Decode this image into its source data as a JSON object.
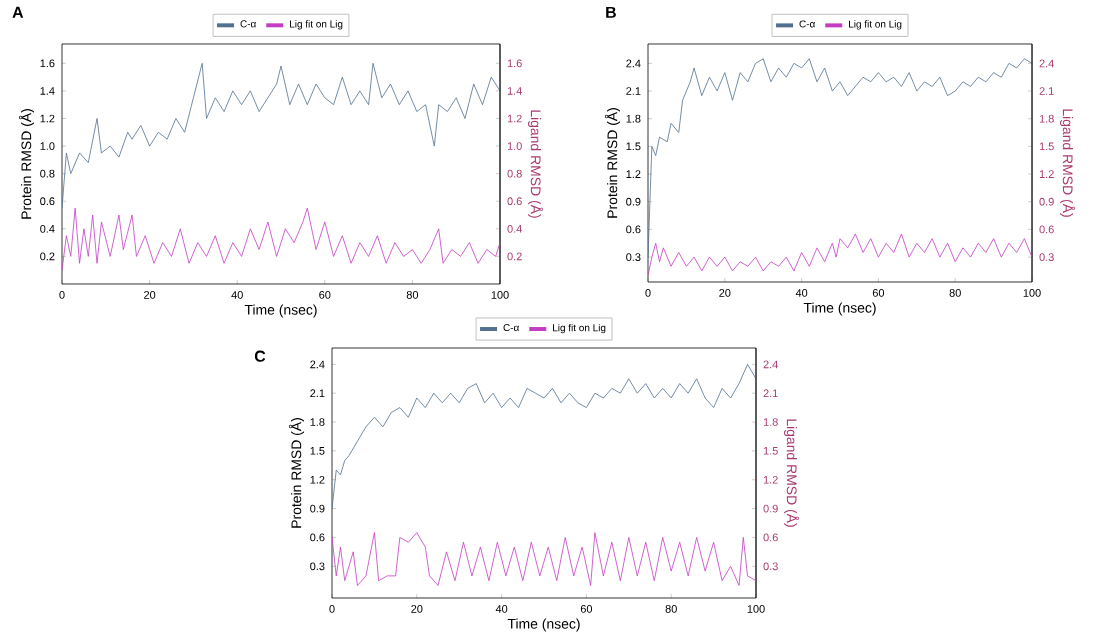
{
  "chart_data": [
    {
      "type": "line",
      "title": "A",
      "xlabel": "Time (nsec)",
      "ylabel": "Protein RMSD (Å)",
      "y2label": "Ligand RMSD (Å)",
      "legend": "top",
      "xlim": [
        0,
        100
      ],
      "xticks": [
        0,
        20,
        40,
        60,
        80,
        100
      ],
      "ylim": [
        0,
        1.74
      ],
      "yticks": [
        0.2,
        0.4,
        0.6,
        0.8,
        {
          "value": 1.0,
          "label": "1.0"
        },
        1.2,
        1.4,
        1.6
      ],
      "y2lim": [
        0,
        1.74
      ],
      "y2ticks": [
        0.2,
        0.4,
        0.6,
        0.8,
        {
          "value": 1.0,
          "label": "1.0"
        },
        1.2,
        1.4,
        1.6
      ],
      "series": [
        {
          "name": "C-α",
          "color": "#52708f",
          "x": [
            0,
            1,
            2,
            4,
            6,
            8,
            9,
            11,
            13,
            15,
            16,
            18,
            20,
            22,
            24,
            26,
            28,
            30,
            32,
            33,
            35,
            37,
            39,
            41,
            43,
            45,
            47,
            49,
            50,
            52,
            54,
            56,
            58,
            60,
            62,
            64,
            66,
            68,
            70,
            71,
            73,
            75,
            77,
            79,
            81,
            83,
            85,
            86,
            88,
            90,
            92,
            94,
            96,
            98,
            100
          ],
          "values": [
            0.55,
            0.95,
            0.8,
            0.95,
            0.88,
            1.2,
            0.95,
            1.0,
            0.92,
            1.1,
            1.05,
            1.15,
            1.0,
            1.1,
            1.05,
            1.2,
            1.1,
            1.35,
            1.6,
            1.2,
            1.35,
            1.25,
            1.4,
            1.3,
            1.4,
            1.25,
            1.35,
            1.45,
            1.58,
            1.3,
            1.45,
            1.3,
            1.45,
            1.35,
            1.3,
            1.5,
            1.3,
            1.4,
            1.3,
            1.6,
            1.35,
            1.45,
            1.3,
            1.4,
            1.25,
            1.3,
            1.0,
            1.3,
            1.25,
            1.35,
            1.2,
            1.45,
            1.3,
            1.5,
            1.4
          ]
        },
        {
          "name": "Lig fit on Lig",
          "color": "#c43cc4",
          "axis": "y2",
          "x": [
            0,
            1,
            2,
            3,
            4,
            5,
            6,
            7,
            8,
            9,
            11,
            13,
            14,
            16,
            17,
            19,
            21,
            23,
            25,
            27,
            29,
            31,
            33,
            35,
            37,
            39,
            41,
            43,
            45,
            47,
            49,
            51,
            53,
            55,
            56,
            58,
            60,
            62,
            64,
            66,
            68,
            70,
            72,
            74,
            76,
            78,
            80,
            82,
            84,
            86,
            87,
            89,
            91,
            93,
            95,
            97,
            99,
            100
          ],
          "values": [
            0.1,
            0.35,
            0.2,
            0.55,
            0.15,
            0.4,
            0.2,
            0.5,
            0.15,
            0.45,
            0.2,
            0.5,
            0.25,
            0.5,
            0.2,
            0.35,
            0.15,
            0.3,
            0.2,
            0.4,
            0.15,
            0.3,
            0.2,
            0.35,
            0.15,
            0.3,
            0.2,
            0.4,
            0.25,
            0.45,
            0.2,
            0.4,
            0.3,
            0.45,
            0.55,
            0.25,
            0.45,
            0.2,
            0.35,
            0.15,
            0.3,
            0.2,
            0.35,
            0.15,
            0.3,
            0.2,
            0.25,
            0.15,
            0.25,
            0.4,
            0.15,
            0.25,
            0.2,
            0.3,
            0.15,
            0.25,
            0.2,
            0.3
          ]
        }
      ]
    },
    {
      "type": "line",
      "title": "B",
      "xlabel": "Time (nsec)",
      "ylabel": "Protein RMSD (Å)",
      "y2label": "Ligand RMSD (Å)",
      "legend": "top",
      "xlim": [
        0,
        100
      ],
      "xticks": [
        0,
        20,
        40,
        60,
        80,
        100
      ],
      "ylim": [
        0.03,
        2.61
      ],
      "yticks": [
        0.3,
        0.6,
        0.9,
        1.2,
        1.5,
        1.8,
        2.1,
        2.4
      ],
      "y2lim": [
        0.03,
        2.61
      ],
      "y2ticks": [
        0.3,
        0.6,
        0.9,
        1.2,
        1.5,
        1.8,
        2.1,
        2.4
      ],
      "series": [
        {
          "name": "C-α",
          "color": "#52708f",
          "x": [
            0,
            1,
            2,
            3,
            5,
            6,
            8,
            9,
            11,
            12,
            14,
            16,
            18,
            20,
            22,
            24,
            26,
            28,
            30,
            32,
            34,
            36,
            38,
            40,
            42,
            44,
            46,
            48,
            50,
            52,
            54,
            56,
            58,
            60,
            62,
            64,
            66,
            68,
            70,
            72,
            74,
            76,
            78,
            80,
            82,
            84,
            86,
            88,
            90,
            92,
            94,
            96,
            98,
            100
          ],
          "values": [
            0.3,
            1.5,
            1.4,
            1.6,
            1.55,
            1.75,
            1.65,
            2.0,
            2.2,
            2.35,
            2.05,
            2.25,
            2.1,
            2.3,
            2.0,
            2.3,
            2.2,
            2.4,
            2.45,
            2.2,
            2.35,
            2.25,
            2.4,
            2.35,
            2.45,
            2.2,
            2.35,
            2.1,
            2.2,
            2.05,
            2.15,
            2.25,
            2.2,
            2.3,
            2.2,
            2.25,
            2.15,
            2.3,
            2.1,
            2.2,
            2.15,
            2.25,
            2.05,
            2.1,
            2.2,
            2.15,
            2.25,
            2.2,
            2.3,
            2.25,
            2.4,
            2.35,
            2.45,
            2.4
          ]
        },
        {
          "name": "Lig fit on Lig",
          "color": "#c43cc4",
          "axis": "y2",
          "x": [
            0,
            1,
            2,
            3,
            4,
            6,
            8,
            10,
            12,
            14,
            16,
            18,
            20,
            22,
            24,
            26,
            28,
            30,
            32,
            34,
            36,
            38,
            40,
            42,
            44,
            46,
            48,
            49,
            50,
            52,
            54,
            56,
            58,
            60,
            62,
            64,
            66,
            68,
            70,
            72,
            74,
            76,
            78,
            80,
            82,
            84,
            86,
            88,
            90,
            92,
            94,
            96,
            98,
            100
          ],
          "values": [
            0.1,
            0.3,
            0.45,
            0.25,
            0.4,
            0.2,
            0.35,
            0.2,
            0.3,
            0.15,
            0.3,
            0.2,
            0.3,
            0.15,
            0.25,
            0.2,
            0.3,
            0.15,
            0.25,
            0.2,
            0.3,
            0.15,
            0.35,
            0.2,
            0.4,
            0.25,
            0.45,
            0.3,
            0.5,
            0.4,
            0.55,
            0.35,
            0.5,
            0.3,
            0.45,
            0.35,
            0.55,
            0.3,
            0.45,
            0.35,
            0.5,
            0.3,
            0.45,
            0.25,
            0.4,
            0.3,
            0.45,
            0.35,
            0.5,
            0.3,
            0.45,
            0.35,
            0.5,
            0.3
          ]
        }
      ]
    },
    {
      "type": "line",
      "title": "C",
      "xlabel": "Time (nsec)",
      "ylabel": "Protein RMSD (Å)",
      "y2label": "Ligand RMSD (Å)",
      "legend": "top",
      "xlim": [
        0,
        100
      ],
      "xticks": [
        0,
        20,
        40,
        60,
        80,
        100
      ],
      "ylim": [
        -0.03,
        2.57
      ],
      "yticks": [
        0.3,
        0.6,
        0.9,
        1.2,
        1.5,
        1.8,
        2.1,
        2.4
      ],
      "y2lim": [
        -0.03,
        2.57
      ],
      "y2ticks": [
        0.3,
        0.6,
        0.9,
        1.2,
        1.5,
        1.8,
        2.1,
        2.4
      ],
      "series": [
        {
          "name": "C-α",
          "color": "#52708f",
          "x": [
            0,
            1,
            2,
            3,
            4,
            6,
            8,
            10,
            12,
            14,
            16,
            18,
            20,
            22,
            24,
            26,
            28,
            30,
            32,
            34,
            36,
            38,
            40,
            42,
            44,
            46,
            48,
            50,
            52,
            54,
            56,
            58,
            60,
            62,
            64,
            66,
            68,
            70,
            72,
            74,
            76,
            78,
            80,
            82,
            84,
            86,
            88,
            90,
            92,
            94,
            96,
            98,
            100
          ],
          "values": [
            0.9,
            1.3,
            1.25,
            1.4,
            1.45,
            1.6,
            1.75,
            1.85,
            1.75,
            1.9,
            1.95,
            1.85,
            2.05,
            1.95,
            2.1,
            2.0,
            2.1,
            2.0,
            2.15,
            2.2,
            2.0,
            2.1,
            1.95,
            2.05,
            1.95,
            2.15,
            2.1,
            2.05,
            2.15,
            2.0,
            2.1,
            2.0,
            1.95,
            2.1,
            2.05,
            2.15,
            2.1,
            2.25,
            2.1,
            2.2,
            2.05,
            2.15,
            2.05,
            2.2,
            2.1,
            2.25,
            2.05,
            1.95,
            2.15,
            2.05,
            2.2,
            2.4,
            2.25
          ]
        },
        {
          "name": "Lig fit on Lig",
          "color": "#c43cc4",
          "axis": "y2",
          "x": [
            0,
            1,
            2,
            3,
            5,
            6,
            8,
            10,
            11,
            13,
            15,
            16,
            18,
            20,
            22,
            23,
            25,
            27,
            29,
            31,
            33,
            35,
            37,
            39,
            41,
            43,
            45,
            47,
            49,
            51,
            53,
            55,
            57,
            59,
            61,
            62,
            64,
            66,
            68,
            70,
            72,
            74,
            76,
            78,
            80,
            82,
            84,
            86,
            88,
            90,
            92,
            94,
            96,
            97,
            98,
            100
          ],
          "values": [
            0.6,
            0.2,
            0.5,
            0.15,
            0.45,
            0.1,
            0.2,
            0.65,
            0.15,
            0.2,
            0.2,
            0.6,
            0.55,
            0.65,
            0.5,
            0.2,
            0.1,
            0.45,
            0.15,
            0.55,
            0.2,
            0.5,
            0.15,
            0.55,
            0.2,
            0.5,
            0.15,
            0.55,
            0.2,
            0.5,
            0.15,
            0.6,
            0.2,
            0.5,
            0.1,
            0.65,
            0.2,
            0.55,
            0.15,
            0.6,
            0.2,
            0.55,
            0.15,
            0.6,
            0.25,
            0.55,
            0.2,
            0.6,
            0.25,
            0.55,
            0.15,
            0.3,
            0.1,
            0.6,
            0.2,
            0.15
          ]
        }
      ]
    }
  ]
}
